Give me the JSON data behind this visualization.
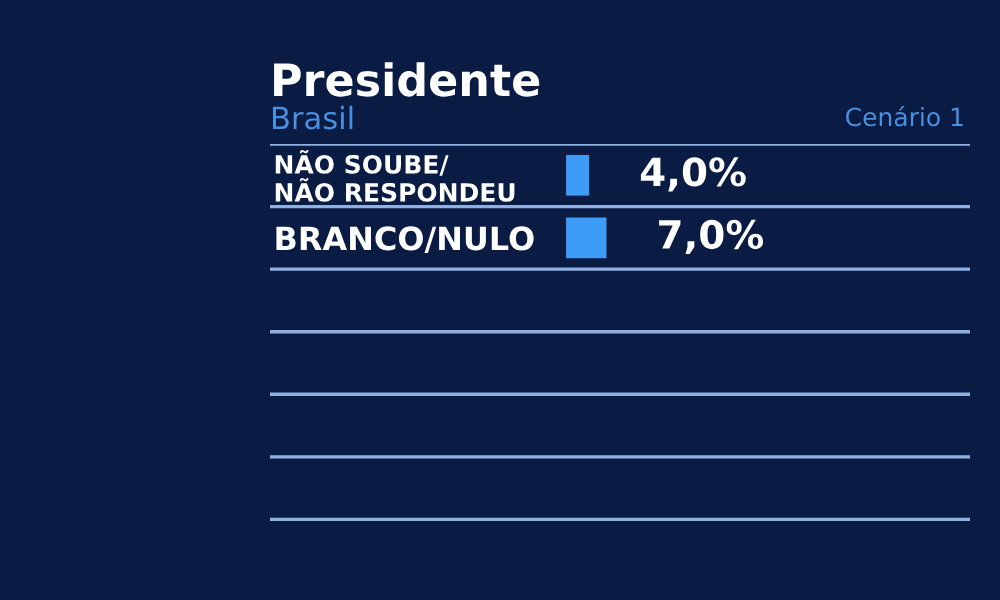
{
  "chart_data": {
    "type": "bar",
    "orientation": "horizontal",
    "title": "Presidente",
    "subtitle": "Brasil",
    "annotations": [
      "Cenário 1"
    ],
    "categories": [
      "NÃO SOUBE/\nNÃO RESPONDEU",
      "BRANCO/NULO"
    ],
    "values": [
      4.0,
      7.0
    ],
    "color": "#3d9cf5",
    "value_labels": [
      "4,0%",
      "7,0%"
    ],
    "grid": "y"
  }
}
